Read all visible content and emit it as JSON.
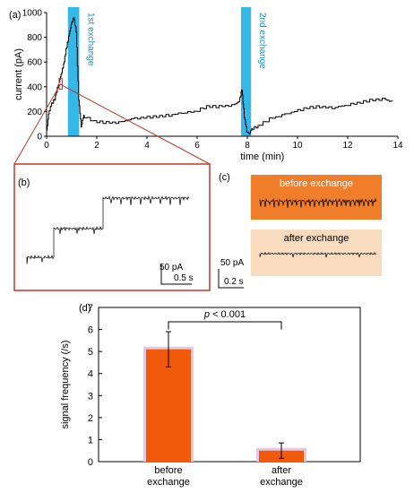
{
  "colors": {
    "exchange_band": "#35b8e6",
    "zoom_box": "#c0392b",
    "before_panel": "#f07d2a",
    "after_panel": "#f9dcc0",
    "bar_fill": "#f05a0a",
    "bar_halo": "#e8c8e0",
    "trace": "#000000"
  },
  "panel_labels": {
    "a": "(a)",
    "b": "(b)",
    "c": "(c)",
    "d": "(d)"
  },
  "panel_a": {
    "ylabel": "current (pA)",
    "xlabel": "time (min)",
    "exchange1_label": "1st exchange",
    "exchange2_label": "2nd exchange"
  },
  "panel_b": {
    "scale_y": "50 pA",
    "scale_x": "0.5 s"
  },
  "panel_c": {
    "before_label": "before exchange",
    "after_label": "after exchange",
    "scale_y": "50 pA",
    "scale_x": "0.2 s"
  },
  "panel_d": {
    "ylabel": "signal frequency (/s)",
    "significance": "p < 0.001",
    "sig_p": "p",
    "sig_rest": " < 0.001",
    "cat1_line1": "before",
    "cat1_line2": "exchange",
    "cat2_line1": "after",
    "cat2_line2": "exchange"
  },
  "chart_data": [
    {
      "panel": "a",
      "type": "line",
      "xlabel": "time (min)",
      "ylabel": "current (pA)",
      "xlim": [
        0,
        14
      ],
      "ylim": [
        0,
        1000
      ],
      "xticks": [
        0,
        2,
        4,
        6,
        8,
        10,
        12,
        14
      ],
      "yticks": [
        0,
        200,
        400,
        600,
        800,
        1000
      ],
      "annotations": [
        {
          "text": "1st exchange",
          "x_range": [
            0.85,
            1.3
          ]
        },
        {
          "text": "2nd exchange",
          "x_range": [
            7.75,
            8.15
          ]
        }
      ],
      "series": [
        {
          "x": [
            0.0,
            0.1,
            0.2,
            0.35,
            0.5,
            0.6,
            0.7,
            0.8,
            0.9,
            1.0,
            1.1,
            1.2,
            1.3,
            1.4,
            1.5,
            2.0,
            2.5,
            3.0,
            3.5,
            4.0,
            4.5,
            5.0,
            5.5,
            6.0,
            6.5,
            7.0,
            7.5,
            7.7,
            7.8,
            7.9,
            8.0,
            8.1,
            8.2,
            8.5,
            9.0,
            9.5,
            10.0,
            10.5,
            11.0,
            11.5,
            12.0,
            12.5,
            13.0,
            13.5,
            13.8
          ],
          "y": [
            0,
            180,
            250,
            300,
            420,
            500,
            580,
            700,
            800,
            900,
            960,
            850,
            300,
            80,
            170,
            120,
            110,
            110,
            140,
            150,
            160,
            170,
            190,
            200,
            240,
            240,
            250,
            280,
            380,
            160,
            40,
            20,
            60,
            80,
            140,
            170,
            200,
            230,
            240,
            230,
            250,
            270,
            290,
            300,
            280
          ]
        }
      ]
    },
    {
      "panel": "d",
      "type": "bar",
      "ylabel": "signal frequency (/s)",
      "ylim": [
        0,
        7
      ],
      "yticks": [
        0,
        1,
        2,
        3,
        4,
        5,
        6,
        7
      ],
      "categories": [
        "before exchange",
        "after exchange"
      ],
      "values": [
        5.1,
        0.5
      ],
      "errors": [
        0.8,
        0.35
      ],
      "annotations": [
        {
          "text": "p < 0.001"
        }
      ]
    }
  ]
}
